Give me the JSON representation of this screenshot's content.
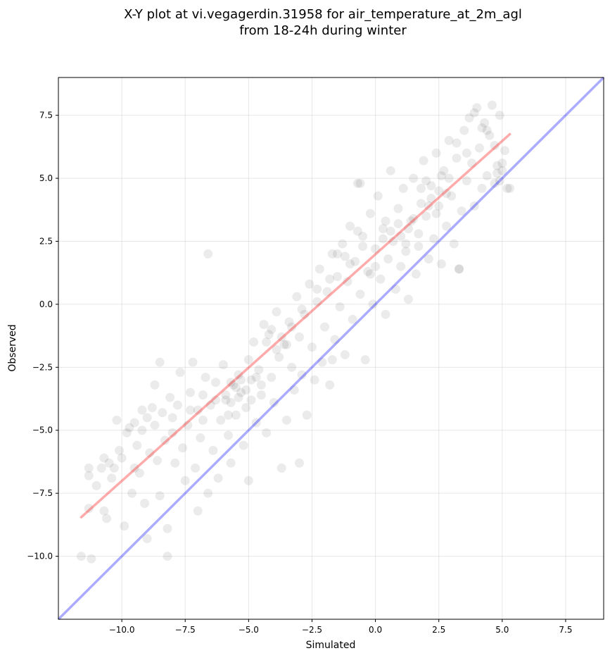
{
  "chart_data": {
    "type": "scatter",
    "title_lines": [
      "X-Y plot at vi.vegagerdin.31958 for air_temperature_at_2m_agl",
      "from 18-24h during winter"
    ],
    "xlabel": "Simulated",
    "ylabel": "Observed",
    "xlim": [
      -12.5,
      9.0
    ],
    "ylim": [
      -12.5,
      9.0
    ],
    "xticks": [
      -10.0,
      -7.5,
      -5.0,
      -2.5,
      0.0,
      2.5,
      5.0,
      7.5
    ],
    "yticks": [
      -10.0,
      -7.5,
      -5.0,
      -2.5,
      0.0,
      2.5,
      5.0,
      7.5
    ],
    "xtick_labels": [
      "−10.0",
      "−7.5",
      "−5.0",
      "−2.5",
      "0.0",
      "2.5",
      "5.0",
      "7.5"
    ],
    "ytick_labels": [
      "−10.0",
      "−7.5",
      "−5.0",
      "−2.5",
      "0.0",
      "2.5",
      "5.0",
      "7.5"
    ],
    "grid": true,
    "point_color": "#000000",
    "point_opacity": 0.08,
    "fit_line": {
      "color": "#ff0000",
      "x": [
        -11.6,
        5.3
      ],
      "y": [
        -8.45,
        6.75
      ]
    },
    "identity_line": {
      "color": "#0000ff",
      "x": [
        -12.5,
        9.0
      ],
      "y": [
        -12.5,
        9.0
      ]
    },
    "points": [
      [
        -11.6,
        -10.0
      ],
      [
        -11.2,
        -10.1
      ],
      [
        -11.3,
        -8.1
      ],
      [
        -11.3,
        -6.8
      ],
      [
        -11.3,
        -6.5
      ],
      [
        -11.0,
        -7.2
      ],
      [
        -10.8,
        -6.5
      ],
      [
        -10.7,
        -6.1
      ],
      [
        -10.7,
        -8.2
      ],
      [
        -10.6,
        -8.5
      ],
      [
        -10.5,
        -6.3
      ],
      [
        -10.4,
        -6.9
      ],
      [
        -10.3,
        -6.5
      ],
      [
        -10.2,
        -4.6
      ],
      [
        -10.1,
        -5.8
      ],
      [
        -10.0,
        -6.1
      ],
      [
        -9.9,
        -8.8
      ],
      [
        -9.8,
        -5.1
      ],
      [
        -9.7,
        -4.9
      ],
      [
        -9.6,
        -7.5
      ],
      [
        -9.5,
        -4.7
      ],
      [
        -9.5,
        -6.5
      ],
      [
        -9.4,
        -5.6
      ],
      [
        -9.3,
        -6.7
      ],
      [
        -9.2,
        -5.0
      ],
      [
        -9.1,
        -7.9
      ],
      [
        -9.0,
        -4.5
      ],
      [
        -9.0,
        -9.3
      ],
      [
        -8.9,
        -5.9
      ],
      [
        -8.8,
        -4.1
      ],
      [
        -8.7,
        -3.2
      ],
      [
        -8.6,
        -6.2
      ],
      [
        -8.5,
        -7.6
      ],
      [
        -8.4,
        -4.3
      ],
      [
        -8.3,
        -5.4
      ],
      [
        -8.2,
        -8.9
      ],
      [
        -8.2,
        -10.0
      ],
      [
        -8.1,
        -3.7
      ],
      [
        -8.0,
        -5.1
      ],
      [
        -7.9,
        -6.3
      ],
      [
        -7.8,
        -4.0
      ],
      [
        -7.7,
        -2.7
      ],
      [
        -7.6,
        -5.7
      ],
      [
        -7.5,
        -7.0
      ],
      [
        -7.4,
        -4.8
      ],
      [
        -7.3,
        -3.5
      ],
      [
        -7.2,
        -2.3
      ],
      [
        -7.1,
        -6.5
      ],
      [
        -7.0,
        -4.2
      ],
      [
        -7.0,
        -8.2
      ],
      [
        -6.9,
        -5.3
      ],
      [
        -6.8,
        -3.6
      ],
      [
        -6.7,
        -2.9
      ],
      [
        -6.6,
        -7.5
      ],
      [
        -6.5,
        -4.0
      ],
      [
        -6.4,
        -5.8
      ],
      [
        -6.3,
        -3.1
      ],
      [
        -6.2,
        -6.9
      ],
      [
        -6.1,
        -4.6
      ],
      [
        -6.0,
        -2.4
      ],
      [
        -5.9,
        -3.8
      ],
      [
        -5.8,
        -5.2
      ],
      [
        -5.7,
        -6.3
      ],
      [
        -5.7,
        -3.9
      ],
      [
        -5.6,
        -3.2
      ],
      [
        -5.5,
        -4.4
      ],
      [
        -5.4,
        -2.8
      ],
      [
        -5.3,
        -3.5
      ],
      [
        -5.2,
        -5.6
      ],
      [
        -5.1,
        -4.1
      ],
      [
        -5.0,
        -2.2
      ],
      [
        -5.0,
        -7.0
      ],
      [
        -4.9,
        -3.0
      ],
      [
        -4.8,
        -1.5
      ],
      [
        -4.7,
        -4.7
      ],
      [
        -4.6,
        -2.6
      ],
      [
        -4.5,
        -3.6
      ],
      [
        -4.4,
        -0.8
      ],
      [
        -4.3,
        -5.1
      ],
      [
        -4.2,
        -1.2
      ],
      [
        -4.1,
        -2.9
      ],
      [
        -4.0,
        -3.9
      ],
      [
        -3.9,
        -0.3
      ],
      [
        -3.8,
        -2.1
      ],
      [
        -3.7,
        -6.5
      ],
      [
        -3.6,
        -1.6
      ],
      [
        -3.5,
        -4.6
      ],
      [
        -3.4,
        -0.7
      ],
      [
        -3.3,
        -2.5
      ],
      [
        -3.2,
        -3.4
      ],
      [
        -3.1,
        0.3
      ],
      [
        -3.0,
        -1.3
      ],
      [
        -3.0,
        -6.3
      ],
      [
        -2.9,
        -2.8
      ],
      [
        -2.8,
        -0.4
      ],
      [
        -2.7,
        -4.4
      ],
      [
        -2.6,
        0.8
      ],
      [
        -2.5,
        -1.7
      ],
      [
        -2.4,
        -3.0
      ],
      [
        -2.3,
        0.1
      ],
      [
        -2.2,
        1.4
      ],
      [
        -2.1,
        -2.3
      ],
      [
        -2.0,
        -0.9
      ],
      [
        -1.9,
        0.5
      ],
      [
        -1.8,
        -3.2
      ],
      [
        -1.7,
        2.0
      ],
      [
        -1.6,
        -1.4
      ],
      [
        -1.5,
        1.1
      ],
      [
        -1.4,
        -0.1
      ],
      [
        -1.3,
        2.4
      ],
      [
        -1.2,
        -2.0
      ],
      [
        -1.1,
        0.9
      ],
      [
        -1.0,
        3.1
      ],
      [
        -0.9,
        -0.6
      ],
      [
        -0.8,
        1.7
      ],
      [
        -0.7,
        4.8
      ],
      [
        -0.6,
        0.4
      ],
      [
        -0.5,
        2.7
      ],
      [
        -0.4,
        -2.2
      ],
      [
        -0.3,
        1.3
      ],
      [
        -0.2,
        3.6
      ],
      [
        -0.1,
        0.0
      ],
      [
        0.0,
        2.2
      ],
      [
        0.1,
        4.3
      ],
      [
        0.2,
        1.0
      ],
      [
        0.3,
        3.0
      ],
      [
        0.4,
        -0.4
      ],
      [
        0.5,
        1.8
      ],
      [
        0.6,
        5.3
      ],
      [
        0.7,
        2.5
      ],
      [
        0.8,
        0.6
      ],
      [
        0.9,
        3.8
      ],
      [
        1.0,
        1.5
      ],
      [
        1.1,
        4.6
      ],
      [
        1.2,
        2.1
      ],
      [
        1.3,
        0.2
      ],
      [
        1.4,
        3.3
      ],
      [
        1.5,
        5.0
      ],
      [
        1.6,
        1.2
      ],
      [
        1.7,
        2.8
      ],
      [
        1.8,
        4.0
      ],
      [
        1.9,
        5.7
      ],
      [
        2.0,
        3.5
      ],
      [
        2.1,
        1.8
      ],
      [
        2.2,
        4.7
      ],
      [
        2.3,
        2.6
      ],
      [
        2.4,
        6.0
      ],
      [
        2.5,
        3.9
      ],
      [
        2.6,
        1.6
      ],
      [
        2.7,
        5.3
      ],
      [
        2.8,
        3.1
      ],
      [
        2.9,
        6.5
      ],
      [
        3.0,
        4.3
      ],
      [
        3.1,
        2.4
      ],
      [
        3.2,
        5.8
      ],
      [
        3.3,
        1.4
      ],
      [
        3.4,
        3.7
      ],
      [
        3.5,
        6.9
      ],
      [
        3.6,
        4.9
      ],
      [
        3.7,
        7.4
      ],
      [
        3.8,
        5.6
      ],
      [
        3.9,
        3.9
      ],
      [
        4.0,
        7.8
      ],
      [
        4.1,
        6.2
      ],
      [
        4.2,
        4.6
      ],
      [
        4.3,
        7.2
      ],
      [
        4.4,
        5.1
      ],
      [
        4.5,
        6.7
      ],
      [
        4.6,
        7.9
      ],
      [
        4.7,
        4.8
      ],
      [
        4.8,
        5.5
      ],
      [
        4.9,
        7.5
      ],
      [
        5.0,
        5.3
      ],
      [
        5.1,
        6.1
      ],
      [
        5.2,
        4.6
      ],
      [
        -6.6,
        2.0
      ],
      [
        -8.5,
        -2.3
      ],
      [
        -1.7,
        -2.2
      ],
      [
        -0.6,
        4.8
      ],
      [
        3.3,
        1.4
      ],
      [
        -5.9,
        -3.6
      ],
      [
        -5.7,
        -3.1
      ],
      [
        -5.5,
        -3.3
      ],
      [
        -5.4,
        -3.7
      ],
      [
        -5.3,
        -3.0
      ],
      [
        -5.1,
        -3.4
      ],
      [
        -4.9,
        -3.8
      ],
      [
        -4.7,
        -2.9
      ],
      [
        -4.5,
        -3.2
      ],
      [
        -4.3,
        -1.5
      ],
      [
        -4.1,
        -1.0
      ],
      [
        -3.9,
        -1.8
      ],
      [
        -3.7,
        -1.3
      ],
      [
        -3.5,
        -1.6
      ],
      [
        -3.3,
        -0.9
      ],
      [
        -1.5,
        2.0
      ],
      [
        -1.0,
        1.6
      ],
      [
        -0.5,
        2.3
      ],
      [
        0.0,
        1.5
      ],
      [
        0.3,
        2.6
      ],
      [
        0.6,
        2.9
      ],
      [
        0.9,
        3.2
      ],
      [
        1.2,
        2.4
      ],
      [
        1.5,
        3.4
      ],
      [
        1.8,
        4.6
      ],
      [
        2.0,
        4.9
      ],
      [
        2.2,
        4.2
      ],
      [
        2.4,
        3.6
      ],
      [
        2.6,
        5.1
      ],
      [
        2.8,
        4.4
      ],
      [
        3.9,
        7.6
      ],
      [
        4.2,
        7.0
      ],
      [
        4.8,
        5.2
      ],
      [
        5.0,
        5.6
      ],
      [
        4.9,
        4.9
      ],
      [
        -9.2,
        -4.2
      ],
      [
        -8.7,
        -4.8
      ],
      [
        -8.0,
        -4.5
      ],
      [
        -7.3,
        -4.2
      ],
      [
        -6.8,
        -4.6
      ],
      [
        -6.3,
        -3.8
      ],
      [
        -5.8,
        -4.4
      ],
      [
        -2.9,
        -0.2
      ],
      [
        -2.3,
        0.6
      ],
      [
        -1.8,
        1.0
      ],
      [
        -1.2,
        1.9
      ],
      [
        -0.7,
        2.9
      ],
      [
        -0.2,
        1.2
      ],
      [
        0.4,
        3.3
      ],
      [
        1.0,
        2.7
      ],
      [
        1.3,
        3.0
      ],
      [
        1.7,
        2.3
      ],
      [
        2.1,
        3.9
      ],
      [
        2.5,
        4.5
      ],
      [
        2.9,
        5.0
      ],
      [
        3.2,
        6.4
      ],
      [
        3.6,
        6.0
      ],
      [
        4.4,
        6.9
      ],
      [
        4.7,
        6.3
      ],
      [
        5.3,
        4.6
      ]
    ]
  }
}
